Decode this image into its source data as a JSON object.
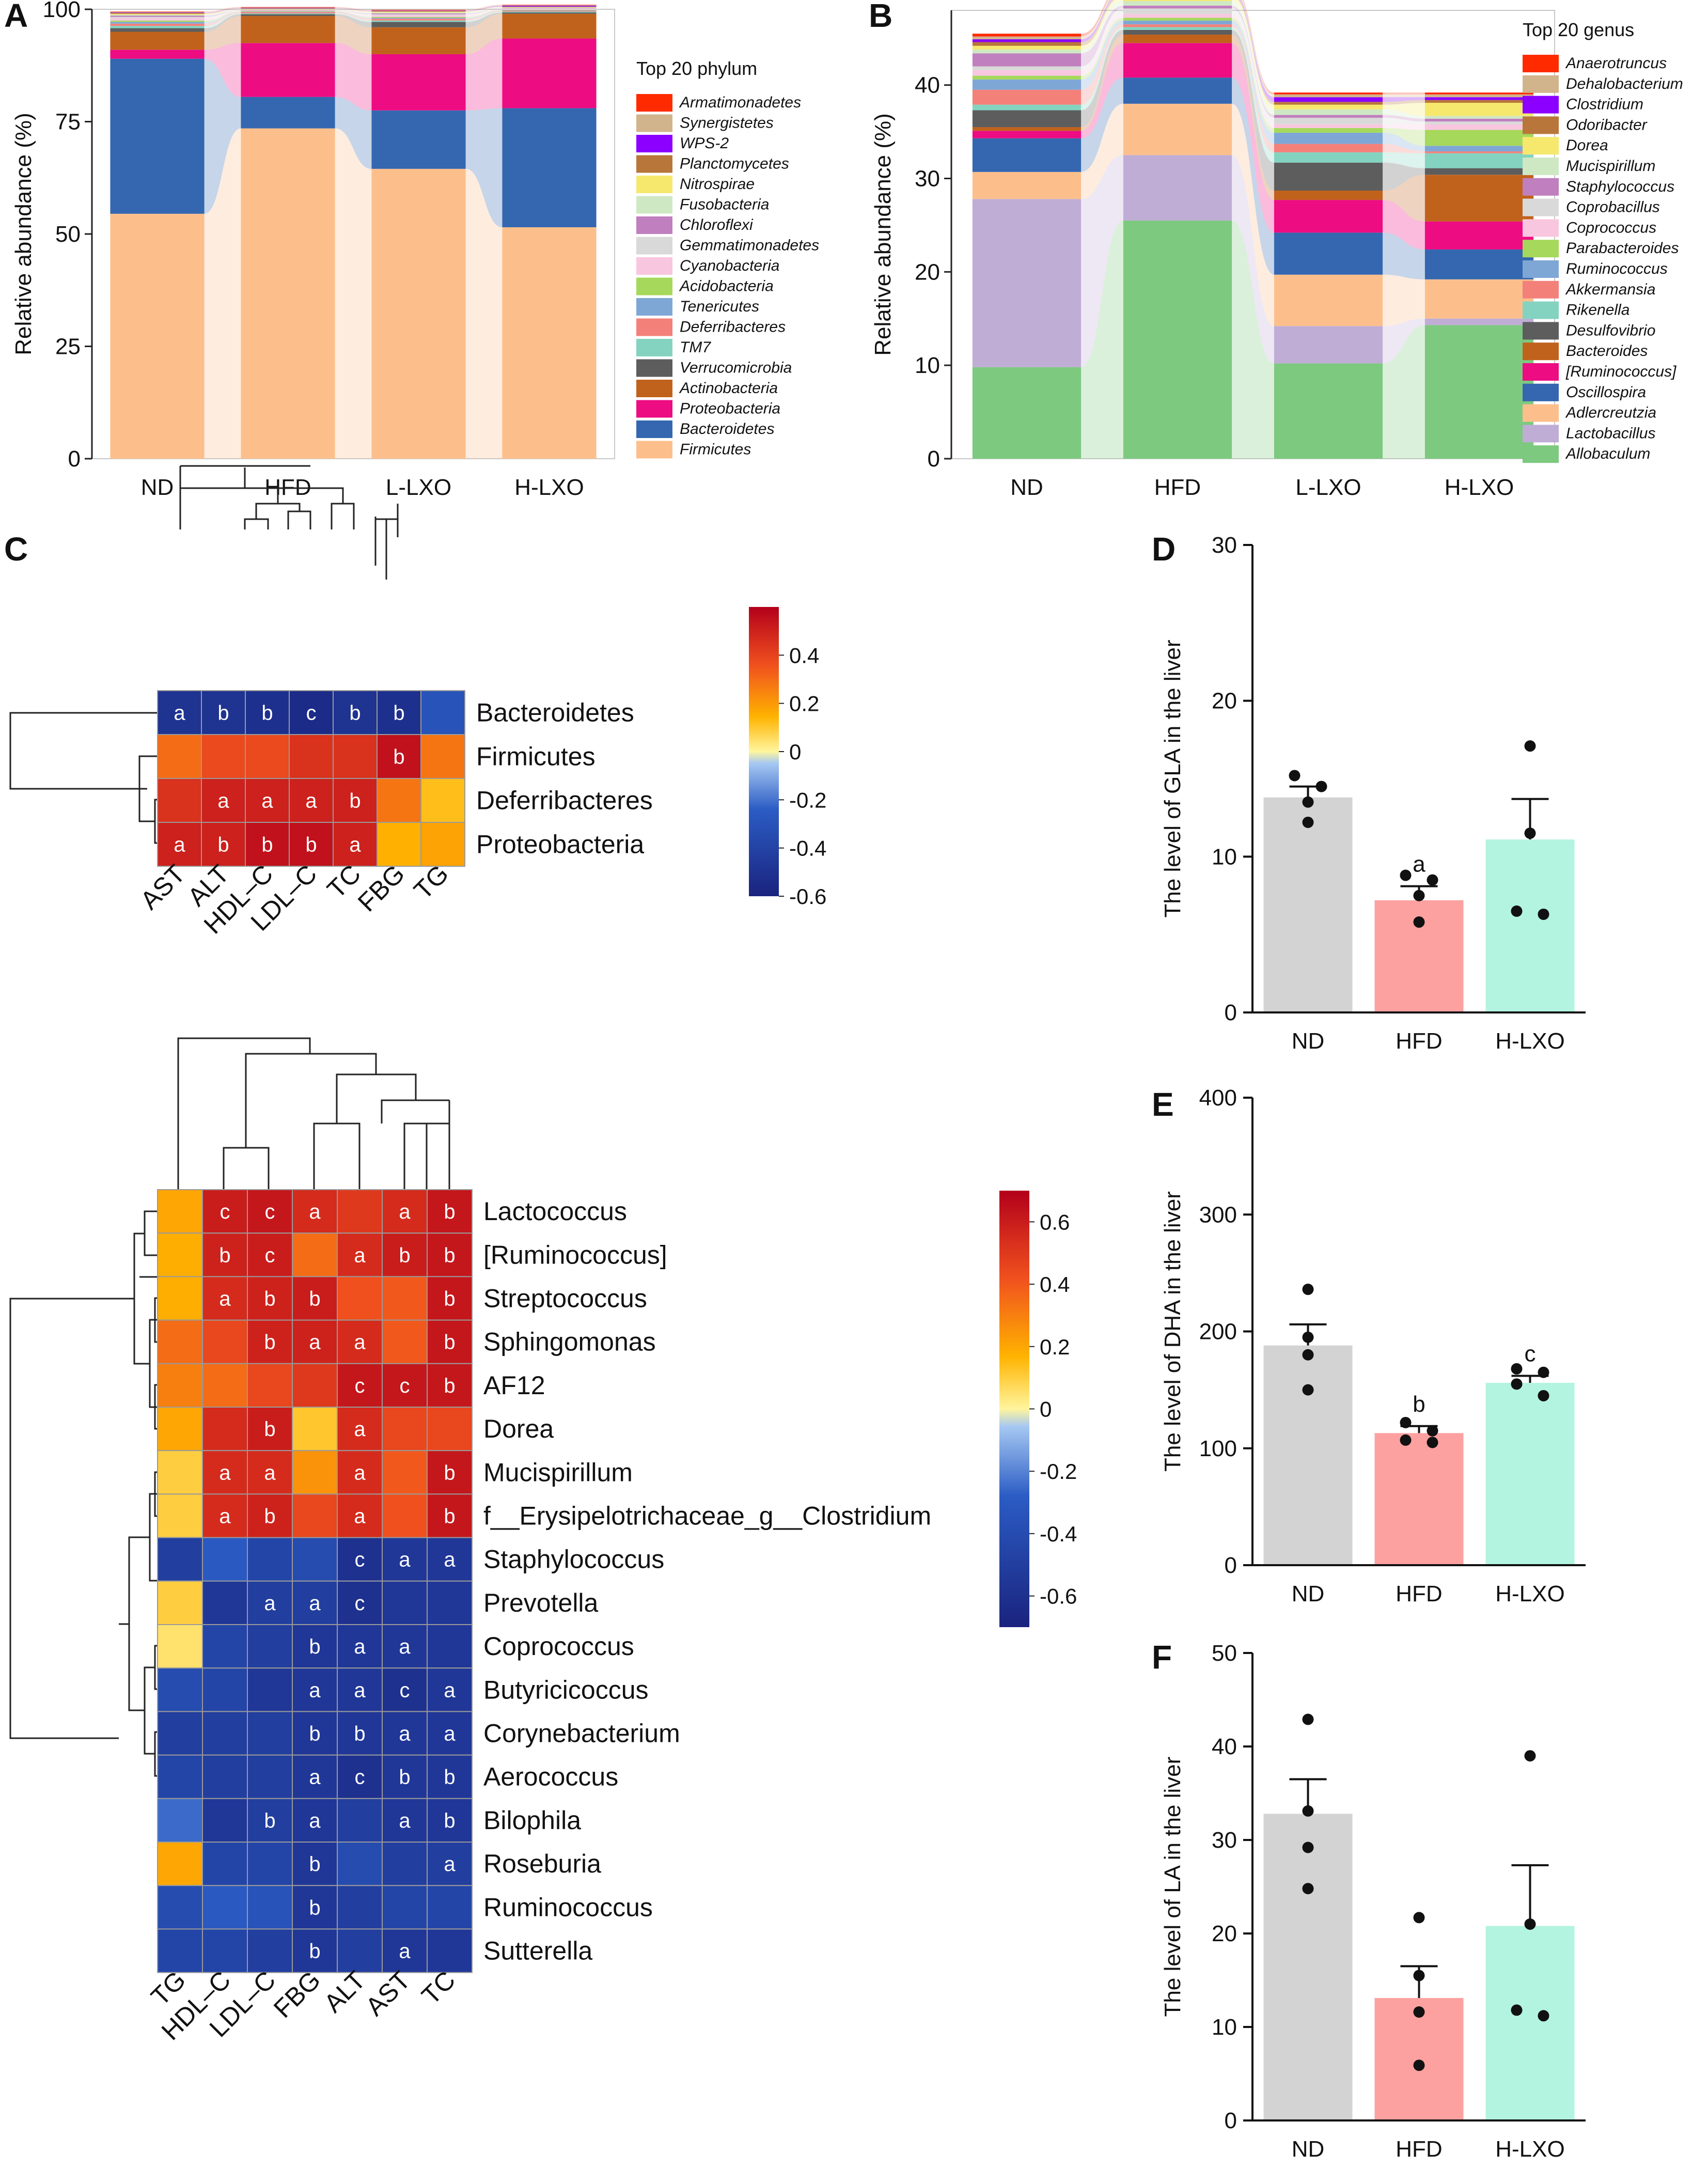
{
  "panels": {
    "A": "A",
    "B": "B",
    "C": "C",
    "D": "D",
    "E": "E",
    "F": "F"
  },
  "chart_data": [
    {
      "id": "A",
      "type": "area",
      "title": "",
      "legend_title": "Top 20 phylum",
      "ylabel": "Relative abundance (%)",
      "xlabel": "",
      "categories": [
        "ND",
        "HFD",
        "L-LXO",
        "H-LXO"
      ],
      "ylim": [
        0,
        100
      ],
      "yticks": [
        0,
        25,
        50,
        75,
        100
      ],
      "series": [
        {
          "name": "Firmicutes",
          "color": "#fcbf8c",
          "values": [
            54.5,
            73.5,
            64.5,
            51.5
          ]
        },
        {
          "name": "Bacteroidetes",
          "color": "#3467b0",
          "values": [
            34.5,
            7.0,
            13.0,
            26.5
          ]
        },
        {
          "name": "Proteobacteria",
          "color": "#ed0c82",
          "values": [
            2.0,
            12.0,
            12.5,
            15.5
          ]
        },
        {
          "name": "Actinobacteria",
          "color": "#c1621c",
          "values": [
            4.0,
            6.0,
            6.0,
            5.5
          ]
        },
        {
          "name": "Verrucomicrobia",
          "color": "#5d5d5d",
          "values": [
            0.8,
            0.4,
            1.2,
            0.3
          ]
        },
        {
          "name": "TM7",
          "color": "#84d3c0",
          "values": [
            0.5,
            0.2,
            0.3,
            0.2
          ]
        },
        {
          "name": "Deferribacteres",
          "color": "#f4807a",
          "values": [
            0.5,
            0.3,
            0.4,
            0.2
          ]
        },
        {
          "name": "Tenericutes",
          "color": "#7ea7d6",
          "values": [
            0.4,
            0.1,
            0.2,
            0.1
          ]
        },
        {
          "name": "Acidobacteria",
          "color": "#a6d85b",
          "values": [
            0.3,
            0.1,
            0.2,
            0.1
          ]
        },
        {
          "name": "Cyanobacteria",
          "color": "#f9c6df",
          "values": [
            0.5,
            0.1,
            0.4,
            0.2
          ]
        },
        {
          "name": "Gemmatimonadetes",
          "color": "#d9d9d9",
          "values": [
            0.3,
            0.1,
            0.2,
            0.1
          ]
        },
        {
          "name": "Chloroflexi",
          "color": "#c07fbe",
          "values": [
            0.3,
            0.1,
            0.2,
            0.1
          ]
        },
        {
          "name": "Fusobacteria",
          "color": "#cfe8c4",
          "values": [
            0.2,
            0.1,
            0.2,
            0.1
          ]
        },
        {
          "name": "Nitrospirae",
          "color": "#f6e86d",
          "values": [
            0.2,
            0.1,
            0.2,
            0.1
          ]
        },
        {
          "name": "Planctomycetes",
          "color": "#b8763a",
          "values": [
            0.2,
            0.1,
            0.1,
            0.1
          ]
        },
        {
          "name": "WPS-2",
          "color": "#8b00ff",
          "values": [
            0.1,
            0.1,
            0.1,
            0.2
          ]
        },
        {
          "name": "Synergistetes",
          "color": "#d2b48c",
          "values": [
            0.1,
            0.1,
            0.1,
            0.1
          ]
        },
        {
          "name": "Armatimonadetes",
          "color": "#ff2a00",
          "values": [
            0.1,
            0.1,
            0.1,
            0.1
          ]
        }
      ]
    },
    {
      "id": "B",
      "type": "area",
      "title": "",
      "legend_title": "Top 20 genus",
      "ylabel": "Relative abundance (%)",
      "xlabel": "",
      "categories": [
        "ND",
        "HFD",
        "L-LXO",
        "H-LXO"
      ],
      "ylim": [
        0,
        48
      ],
      "yticks": [
        0,
        10,
        20,
        30,
        40
      ],
      "series": [
        {
          "name": "Allobaculum",
          "color": "#7dc97f",
          "values": [
            9.8,
            25.5,
            10.2,
            14.3
          ]
        },
        {
          "name": "Lactobacillus",
          "color": "#bfadd6",
          "values": [
            18.0,
            7.0,
            4.0,
            0.7
          ]
        },
        {
          "name": "Adlercreutzia",
          "color": "#fcbf8c",
          "values": [
            2.9,
            5.5,
            5.5,
            4.2
          ]
        },
        {
          "name": "Oscillospira",
          "color": "#3467b0",
          "values": [
            3.6,
            2.8,
            4.5,
            3.2
          ]
        },
        {
          "name": "[Ruminococcus]",
          "color": "#ed0c82",
          "values": [
            0.8,
            3.7,
            3.5,
            3.0
          ]
        },
        {
          "name": "Bacteroides",
          "color": "#c1621c",
          "values": [
            0.4,
            0.9,
            1.0,
            5.0
          ]
        },
        {
          "name": "Desulfovibrio",
          "color": "#5d5d5d",
          "values": [
            1.8,
            0.5,
            3.0,
            0.7
          ]
        },
        {
          "name": "Rikenella",
          "color": "#84d3c0",
          "values": [
            0.6,
            0.3,
            1.1,
            1.6
          ]
        },
        {
          "name": "Akkermansia",
          "color": "#f4807a",
          "values": [
            1.6,
            0.3,
            0.9,
            0.2
          ]
        },
        {
          "name": "Ruminococcus",
          "color": "#7ea7d6",
          "values": [
            1.1,
            0.4,
            1.2,
            0.6
          ]
        },
        {
          "name": "Parabacteroides",
          "color": "#a6d85b",
          "values": [
            0.4,
            0.3,
            0.5,
            1.7
          ]
        },
        {
          "name": "Coprococcus",
          "color": "#f9c6df",
          "values": [
            0.6,
            0.4,
            0.4,
            0.6
          ]
        },
        {
          "name": "Coprobacillus",
          "color": "#d9d9d9",
          "values": [
            0.4,
            0.6,
            0.7,
            0.3
          ]
        },
        {
          "name": "Staphylococcus",
          "color": "#c07fbe",
          "values": [
            1.4,
            0.3,
            0.3,
            0.3
          ]
        },
        {
          "name": "Mucispirillum",
          "color": "#cfe8c4",
          "values": [
            0.4,
            0.5,
            0.6,
            0.3
          ]
        },
        {
          "name": "Dorea",
          "color": "#f6e86d",
          "values": [
            0.4,
            0.5,
            0.5,
            1.4
          ]
        },
        {
          "name": "Odoribacter",
          "color": "#b8763a",
          "values": [
            0.4,
            0.3,
            0.3,
            0.3
          ]
        },
        {
          "name": "Clostridium",
          "color": "#8b00ff",
          "values": [
            0.3,
            0.2,
            0.5,
            0.3
          ]
        },
        {
          "name": "Dehalobacterium",
          "color": "#d2b48c",
          "values": [
            0.3,
            0.3,
            0.3,
            0.3
          ]
        },
        {
          "name": "Anaerotruncus",
          "color": "#ff2a00",
          "values": [
            0.3,
            0.3,
            0.2,
            0.2
          ]
        }
      ]
    },
    {
      "id": "C1",
      "type": "heatmap",
      "rows": [
        "Bacteroidetes",
        "Firmicutes",
        "Deferribacteres",
        "Proteobacteria"
      ],
      "cols": [
        "AST",
        "ALT",
        "HDL–C",
        "LDL–C",
        "TC",
        "FBG",
        "TG"
      ],
      "values": [
        [
          -0.5,
          -0.5,
          -0.52,
          -0.55,
          -0.5,
          -0.52,
          -0.3
        ],
        [
          0.3,
          0.38,
          0.38,
          0.45,
          0.45,
          0.55,
          0.28
        ],
        [
          0.45,
          0.5,
          0.5,
          0.5,
          0.5,
          0.28,
          0.12
        ],
        [
          0.5,
          0.5,
          0.55,
          0.55,
          0.5,
          0.15,
          0.18
        ]
      ],
      "labels": [
        [
          "a",
          "b",
          "b",
          "c",
          "b",
          "b",
          ""
        ],
        [
          "",
          "",
          "",
          "",
          "",
          "b",
          ""
        ],
        [
          "",
          "a",
          "a",
          "a",
          "b",
          "",
          ""
        ],
        [
          "a",
          "b",
          "b",
          "b",
          "a",
          "",
          ""
        ]
      ],
      "scale": {
        "min": -0.6,
        "max": 0.6,
        "ticks": [
          -0.6,
          -0.4,
          -0.2,
          0.0,
          0.2,
          0.4
        ]
      }
    },
    {
      "id": "C2",
      "type": "heatmap",
      "rows": [
        "Lactococcus",
        "[Ruminococcus]",
        "Streptococcus",
        "Sphingomonas",
        "AF12",
        "Dorea",
        "Mucispirillum",
        "f__Erysipelotrichaceae_g__Clostridium",
        "Staphylococcus",
        "Prevotella",
        "Coprococcus",
        "Butyricicoccus",
        "Corynebacterium",
        "Aerococcus",
        "Bilophila",
        "Roseburia",
        "Ruminococcus",
        "Sutterella"
      ],
      "cols": [
        "TG",
        "HDL–C",
        "LDL–C",
        "FBG",
        "ALT",
        "AST",
        "TC"
      ],
      "values": [
        [
          0.2,
          0.6,
          0.62,
          0.55,
          0.5,
          0.55,
          0.62
        ],
        [
          0.18,
          0.58,
          0.6,
          0.35,
          0.55,
          0.6,
          0.62
        ],
        [
          0.18,
          0.55,
          0.58,
          0.6,
          0.42,
          0.4,
          0.62
        ],
        [
          0.35,
          0.45,
          0.58,
          0.58,
          0.55,
          0.4,
          0.62
        ],
        [
          0.3,
          0.35,
          0.45,
          0.5,
          0.62,
          0.62,
          0.62
        ],
        [
          0.2,
          0.55,
          0.6,
          0.12,
          0.55,
          0.45,
          0.45
        ],
        [
          0.1,
          0.55,
          0.55,
          0.25,
          0.55,
          0.4,
          0.62
        ],
        [
          0.1,
          0.55,
          0.58,
          0.45,
          0.55,
          0.42,
          0.62
        ],
        [
          -0.5,
          -0.3,
          -0.45,
          -0.4,
          -0.6,
          -0.55,
          -0.55
        ],
        [
          0.1,
          -0.55,
          -0.5,
          -0.5,
          -0.6,
          -0.55,
          -0.55
        ],
        [
          0.05,
          -0.45,
          -0.5,
          -0.55,
          -0.55,
          -0.55,
          -0.55
        ],
        [
          -0.4,
          -0.45,
          -0.55,
          -0.55,
          -0.55,
          -0.6,
          -0.55
        ],
        [
          -0.5,
          -0.5,
          -0.5,
          -0.55,
          -0.55,
          -0.55,
          -0.55
        ],
        [
          -0.45,
          -0.5,
          -0.5,
          -0.55,
          -0.6,
          -0.55,
          -0.55
        ],
        [
          -0.25,
          -0.55,
          -0.5,
          -0.55,
          -0.5,
          -0.55,
          -0.55
        ],
        [
          0.2,
          -0.45,
          -0.45,
          -0.55,
          -0.4,
          -0.5,
          -0.5
        ],
        [
          -0.4,
          -0.3,
          -0.35,
          -0.55,
          -0.5,
          -0.45,
          -0.45
        ],
        [
          -0.45,
          -0.45,
          -0.5,
          -0.55,
          -0.5,
          -0.55,
          -0.55
        ]
      ],
      "labels": [
        [
          "",
          "c",
          "c",
          "a",
          "",
          "a",
          "b"
        ],
        [
          "",
          "b",
          "c",
          "",
          "a",
          "b",
          "b"
        ],
        [
          "",
          "a",
          "b",
          "b",
          "",
          "",
          "b"
        ],
        [
          "",
          "",
          "b",
          "a",
          "a",
          "",
          "b"
        ],
        [
          "",
          "",
          "",
          "",
          "c",
          "c",
          "b"
        ],
        [
          "",
          "",
          "b",
          "",
          "a",
          "",
          ""
        ],
        [
          "",
          "a",
          "a",
          "",
          "a",
          "",
          "b"
        ],
        [
          "",
          "a",
          "b",
          "",
          "a",
          "",
          "b"
        ],
        [
          "",
          "",
          "",
          "",
          "c",
          "a",
          "a"
        ],
        [
          "",
          "",
          "a",
          "a",
          "c",
          "",
          ""
        ],
        [
          "",
          "",
          "",
          "b",
          "a",
          "a",
          ""
        ],
        [
          "",
          "",
          "",
          "a",
          "a",
          "c",
          "a"
        ],
        [
          "",
          "",
          "",
          "b",
          "b",
          "a",
          "a"
        ],
        [
          "",
          "",
          "",
          "a",
          "c",
          "b",
          "b"
        ],
        [
          "",
          "",
          "b",
          "a",
          "",
          "a",
          "b"
        ],
        [
          "",
          "",
          "",
          "b",
          "",
          "",
          "a"
        ],
        [
          "",
          "",
          "",
          "b",
          "",
          "",
          ""
        ],
        [
          "",
          "",
          "",
          "b",
          "",
          "a",
          ""
        ]
      ],
      "scale": {
        "min": -0.7,
        "max": 0.7,
        "ticks": [
          -0.6,
          -0.4,
          -0.2,
          0.0,
          0.2,
          0.4,
          0.6
        ]
      }
    },
    {
      "id": "D",
      "type": "bar",
      "ylabel": "The level of GLA in the liver",
      "categories": [
        "ND",
        "HFD",
        "H-LXO"
      ],
      "values": [
        13.8,
        7.2,
        11.1
      ],
      "errors": [
        0.7,
        0.9,
        2.6
      ],
      "points": [
        [
          15.2,
          14.5,
          13.5,
          12.2
        ],
        [
          8.8,
          8.5,
          7.5,
          5.8
        ],
        [
          17.1,
          11.5,
          6.5,
          6.3
        ]
      ],
      "sig": [
        "",
        "a",
        ""
      ],
      "colors": [
        "#d3d3d3",
        "#fca1a0",
        "#b2f4e0"
      ],
      "ylim": [
        0,
        30
      ],
      "yticks": [
        0,
        10,
        20,
        30
      ]
    },
    {
      "id": "E",
      "type": "bar",
      "ylabel": "The level of DHA in the liver",
      "categories": [
        "ND",
        "HFD",
        "H-LXO"
      ],
      "values": [
        188,
        113,
        156
      ],
      "errors": [
        18,
        6,
        6
      ],
      "points": [
        [
          236,
          195,
          180,
          150
        ],
        [
          122,
          115,
          107,
          105
        ],
        [
          168,
          165,
          155,
          145
        ]
      ],
      "sig": [
        "",
        "b",
        "c"
      ],
      "colors": [
        "#d3d3d3",
        "#fca1a0",
        "#b2f4e0"
      ],
      "ylim": [
        0,
        400
      ],
      "yticks": [
        0,
        100,
        200,
        300,
        400
      ]
    },
    {
      "id": "F",
      "type": "bar",
      "ylabel": "The level of LA in the liver",
      "categories": [
        "ND",
        "HFD",
        "H-LXO"
      ],
      "values": [
        32.8,
        13.1,
        20.8
      ],
      "errors": [
        3.7,
        3.4,
        6.5
      ],
      "points": [
        [
          42.9,
          33.1,
          29.2,
          24.8
        ],
        [
          21.7,
          15.5,
          11.6,
          5.9
        ],
        [
          39.0,
          21.0,
          11.8,
          11.2
        ]
      ],
      "sig": [
        "",
        "",
        ""
      ],
      "colors": [
        "#d3d3d3",
        "#fca1a0",
        "#b2f4e0"
      ],
      "ylim": [
        0,
        50
      ],
      "yticks": [
        0,
        10,
        20,
        30,
        40,
        50
      ]
    }
  ]
}
